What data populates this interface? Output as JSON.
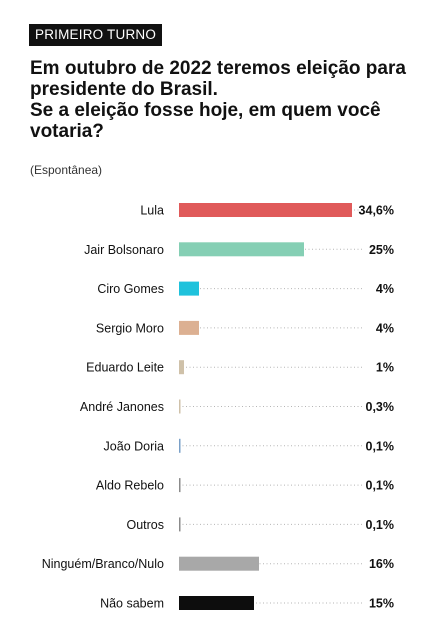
{
  "header": {
    "badge": "PRIMEIRO TURNO",
    "lead": "Em outubro de 2022 teremos eleição para presidente do Brasil.",
    "question": "Se a eleição fosse hoje, em quem você votaria?",
    "note": "(Espontânea)"
  },
  "chart_data": {
    "type": "bar",
    "orientation": "horizontal",
    "categories": [
      "Lula",
      "Jair Bolsonaro",
      "Ciro Gomes",
      "Sergio Moro",
      "Eduardo Leite",
      "André Janones",
      "João Doria",
      "Aldo Rebelo",
      "Outros",
      "Ninguém/Branco/Nulo",
      "Não sabem"
    ],
    "values": [
      34.6,
      25,
      4,
      4,
      1,
      0.3,
      0.1,
      0.1,
      0.1,
      16,
      15
    ],
    "value_labels": [
      "34,6%",
      "25%",
      "4%",
      "4%",
      "1%",
      "0,3%",
      "0,1%",
      "0,1%",
      "0,1%",
      "16%",
      "15%"
    ],
    "colors": [
      "#e05a5a",
      "#85cfb4",
      "#1fc2dc",
      "#dcb092",
      "#cfc1a9",
      "#cfc1a9",
      "#7aa0c8",
      "#8b8b8b",
      "#8b8b8b",
      "#a8a8a8",
      "#0d0d0d"
    ],
    "xlim": [
      0,
      34.6
    ],
    "grid": "dotted guide lines"
  }
}
